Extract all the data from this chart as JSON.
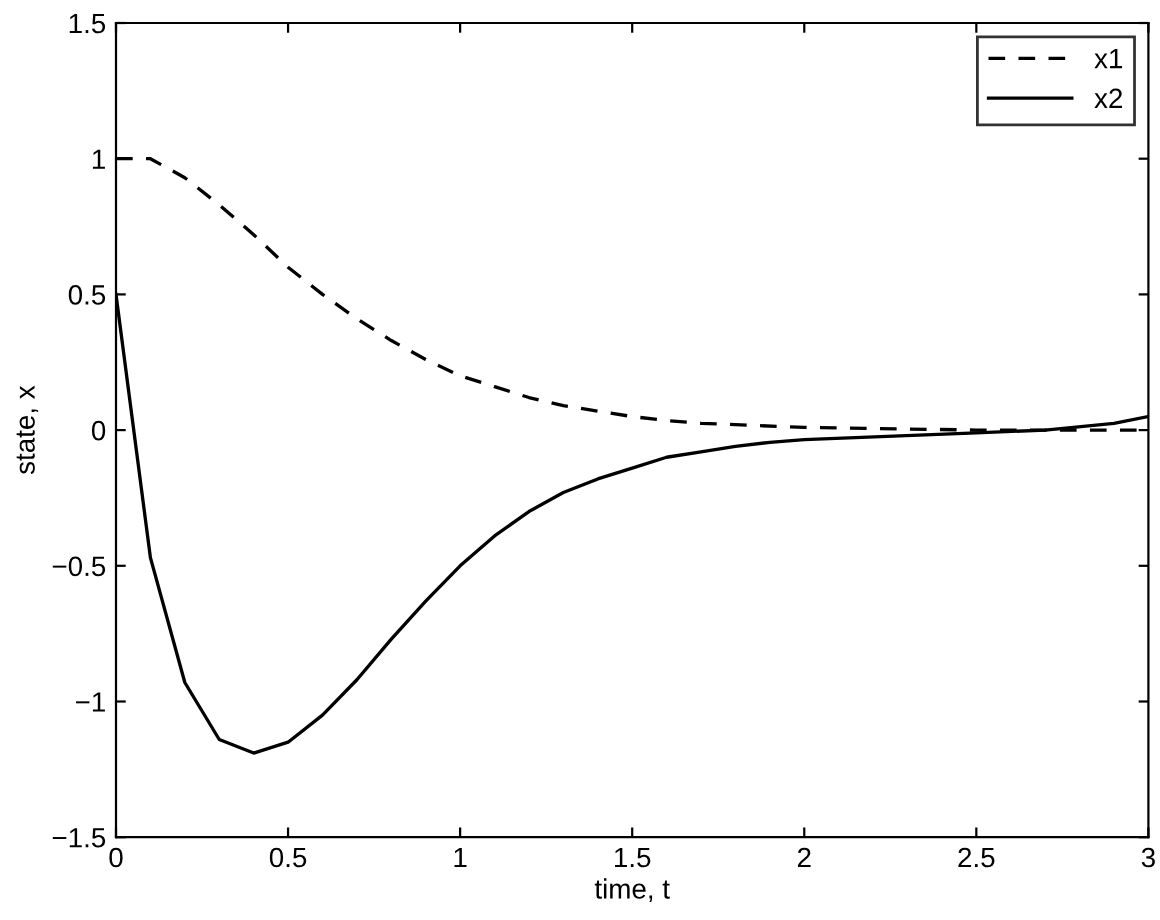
{
  "chart_data": {
    "type": "line",
    "xlabel": "time, t",
    "ylabel": "state, x",
    "xlim": [
      0,
      3
    ],
    "xticks": [
      0,
      0.5,
      1,
      1.5,
      2,
      2.5,
      3
    ],
    "ylim": [
      -1.5,
      1.5
    ],
    "yticks": [
      {
        "value": -1.5,
        "label": "−1.5"
      },
      {
        "value": -1,
        "label": "−1"
      },
      {
        "value": -0.5,
        "label": "−0.5"
      },
      0,
      0.5,
      1,
      1.5
    ],
    "grid": false,
    "legend": "top right",
    "marker": "none",
    "series": [
      {
        "name": "x1",
        "color": "#000000",
        "line_style": "dashed",
        "x": [
          0,
          0.1,
          0.2,
          0.3,
          0.4,
          0.5,
          0.6,
          0.7,
          0.8,
          0.9,
          1.0,
          1.1,
          1.2,
          1.3,
          1.4,
          1.5,
          1.6,
          1.7,
          1.8,
          2.0,
          2.5,
          3.0
        ],
        "values": [
          1,
          1.0,
          0.93,
          0.83,
          0.72,
          0.6,
          0.5,
          0.41,
          0.33,
          0.26,
          0.2,
          0.16,
          0.12,
          0.09,
          0.07,
          0.05,
          0.035,
          0.025,
          0.02,
          0.01,
          0.0,
          0.0
        ]
      },
      {
        "name": "x2",
        "color": "#000000",
        "line_style": "solid",
        "x": [
          0,
          0.1,
          0.2,
          0.3,
          0.4,
          0.5,
          0.6,
          0.7,
          0.8,
          0.9,
          1.0,
          1.1,
          1.2,
          1.3,
          1.4,
          1.5,
          1.6,
          1.7,
          1.8,
          1.9,
          2.0,
          2.5,
          2.7,
          2.9,
          3.0
        ],
        "values": [
          0.5,
          -0.47,
          -0.93,
          -1.14,
          -1.19,
          -1.15,
          -1.05,
          -0.92,
          -0.77,
          -0.63,
          -0.5,
          -0.39,
          -0.3,
          -0.23,
          -0.18,
          -0.14,
          -0.1,
          -0.08,
          -0.06,
          -0.045,
          -0.035,
          -0.01,
          0.0,
          0.025,
          0.05
        ]
      }
    ]
  }
}
